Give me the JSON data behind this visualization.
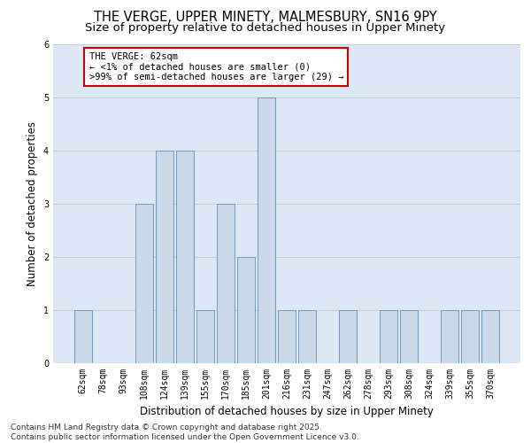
{
  "title_line1": "THE VERGE, UPPER MINETY, MALMESBURY, SN16 9PY",
  "title_line2": "Size of property relative to detached houses in Upper Minety",
  "xlabel": "Distribution of detached houses by size in Upper Minety",
  "ylabel": "Number of detached properties",
  "categories": [
    "62sqm",
    "78sqm",
    "93sqm",
    "108sqm",
    "124sqm",
    "139sqm",
    "155sqm",
    "170sqm",
    "185sqm",
    "201sqm",
    "216sqm",
    "231sqm",
    "247sqm",
    "262sqm",
    "278sqm",
    "293sqm",
    "308sqm",
    "324sqm",
    "339sqm",
    "355sqm",
    "370sqm"
  ],
  "values": [
    1,
    0,
    0,
    3,
    4,
    4,
    1,
    3,
    2,
    5,
    1,
    1,
    0,
    1,
    0,
    1,
    1,
    0,
    1,
    1,
    1
  ],
  "bar_color_normal": "#c9d9ea",
  "bar_edge_color": "#7099bb",
  "annotation_box_text": "THE VERGE: 62sqm\n← <1% of detached houses are smaller (0)\n>99% of semi-detached houses are larger (29) →",
  "annotation_box_edge_color": "#cc0000",
  "annotation_box_bg": "#ffffff",
  "ylim": [
    0,
    6
  ],
  "yticks": [
    0,
    1,
    2,
    3,
    4,
    5,
    6
  ],
  "grid_color": "#cccccc",
  "background_color": "#dce8f5",
  "footer_line1": "Contains HM Land Registry data © Crown copyright and database right 2025.",
  "footer_line2": "Contains public sector information licensed under the Open Government Licence v3.0.",
  "title_fontsize": 10.5,
  "subtitle_fontsize": 9.5,
  "axis_label_fontsize": 8.5,
  "tick_fontsize": 7,
  "annotation_fontsize": 7.5,
  "footer_fontsize": 6.5
}
